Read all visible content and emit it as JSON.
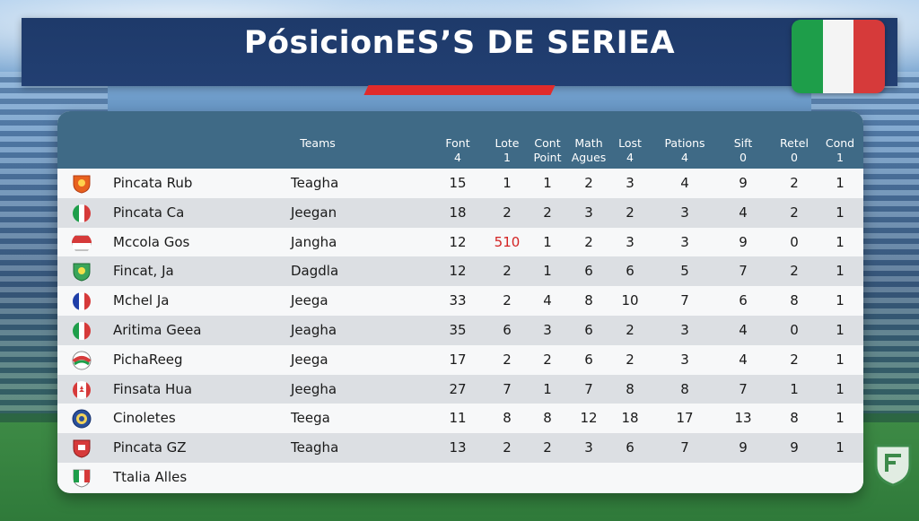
{
  "title": "PósicionES’S DE SERIEA",
  "headers": {
    "teams": "Teams",
    "cols": [
      {
        "l1": "Font",
        "l2": "4"
      },
      {
        "l1": "Lote",
        "l2": "1"
      },
      {
        "l1": "Cont",
        "l2": "Point"
      },
      {
        "l1": "Math",
        "l2": "Agues"
      },
      {
        "l1": "Lost",
        "l2": "4"
      },
      {
        "l1": "Pations",
        "l2": "4"
      },
      {
        "l1": "Sift",
        "l2": "0"
      },
      {
        "l1": "Retel",
        "l2": "0"
      },
      {
        "l1": "Cond",
        "l2": "1"
      }
    ]
  },
  "rows": [
    {
      "club": "Pincata Rub",
      "team": "Teagha",
      "v": [
        "15",
        "1",
        "1",
        "2",
        "3",
        "4",
        "9",
        "2",
        "1"
      ],
      "crest": "shield-orange"
    },
    {
      "club": "Pincata Ca",
      "team": "Jeegan",
      "v": [
        "18",
        "2",
        "2",
        "3",
        "2",
        "3",
        "4",
        "2",
        "1"
      ],
      "crest": "round-italy"
    },
    {
      "club": "Mccola Gos",
      "team": "Jangha",
      "v": [
        "12",
        "510",
        "1",
        "2",
        "3",
        "3",
        "9",
        "0",
        "1"
      ],
      "crest": "flag-red-white"
    },
    {
      "club": "Fincat, Ja",
      "team": "Dagdla",
      "v": [
        "12",
        "2",
        "1",
        "6",
        "6",
        "5",
        "7",
        "2",
        "1"
      ],
      "crest": "shield-green"
    },
    {
      "club": "Mchel Ja",
      "team": "Jeega",
      "v": [
        "33",
        "2",
        "4",
        "8",
        "10",
        "7",
        "6",
        "8",
        "1"
      ],
      "crest": "round-france"
    },
    {
      "club": "Aritima Geea",
      "team": "Jeagha",
      "v": [
        "35",
        "6",
        "3",
        "6",
        "2",
        "3",
        "4",
        "0",
        "1"
      ],
      "crest": "round-italy"
    },
    {
      "club": "PichaReeg",
      "team": "Jeega",
      "v": [
        "17",
        "2",
        "2",
        "6",
        "2",
        "3",
        "4",
        "2",
        "1"
      ],
      "crest": "round-swirl"
    },
    {
      "club": "Finsata Hua",
      "team": "Jeegha",
      "v": [
        "27",
        "7",
        "1",
        "7",
        "8",
        "8",
        "7",
        "1",
        "1"
      ],
      "crest": "round-canada"
    },
    {
      "club": "Cinoletes",
      "team": "Teega",
      "v": [
        "11",
        "8",
        "8",
        "12",
        "18",
        "17",
        "13",
        "8",
        "1"
      ],
      "crest": "round-blue"
    },
    {
      "club": "Pincata GZ",
      "team": "Teagha",
      "v": [
        "13",
        "2",
        "2",
        "3",
        "6",
        "7",
        "9",
        "9",
        "1"
      ],
      "crest": "shield-red"
    },
    {
      "club": "Ttalia Alles",
      "team": "",
      "v": [
        "",
        "",
        "",
        "",
        "",
        "",
        "",
        "",
        ""
      ],
      "crest": "shield-italy"
    }
  ],
  "colors": {
    "title_bar": "#1e3a6a",
    "header": "#3f6a86",
    "accent_red": "#e02b2b",
    "italy_green": "#1e9e4a",
    "italy_white": "#f4f4f4",
    "italy_red": "#d63a3a"
  }
}
